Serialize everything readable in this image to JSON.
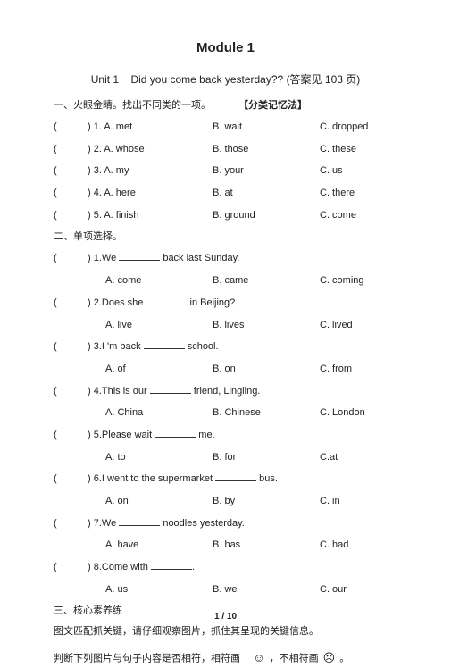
{
  "module_title": "Module 1",
  "unit_prefix": "Unit 1",
  "unit_en": "Did you come back yesterday??",
  "unit_suffix": " (答案见 103 页)",
  "section1_label": "一、火眼金睛。找出不同类的一项。",
  "section1_note": "【分类记忆法】",
  "sec1": [
    {
      "n": ") 1.",
      "a": "A. met",
      "b": "B. wait",
      "c": "C. dropped"
    },
    {
      "n": ") 2.",
      "a": "A. whose",
      "b": "B. those",
      "c": "C. these"
    },
    {
      "n": ") 3.",
      "a": "A. my",
      "b": "B. your",
      "c": "C. us"
    },
    {
      "n": ") 4.",
      "a": "A. here",
      "b": "B. at",
      "c": "C. there"
    },
    {
      "n": ") 5.",
      "a": "A. finish",
      "b": "B. ground",
      "c": "C. come"
    }
  ],
  "section2_label": "二、单项选择。",
  "sec2": [
    {
      "n": ") 1.",
      "stem_pre": "We ",
      "stem_post": " back last Sunday.",
      "a": "A. come",
      "b": "B. came",
      "c": "C. coming"
    },
    {
      "n": ") 2.",
      "stem_pre": "Does she ",
      "stem_post": " in Beijing?",
      "a": "A. live",
      "b": "B.   lives",
      "c": "C. lived"
    },
    {
      "n": ") 3.",
      "stem_pre": "I 'm back ",
      "stem_post": " school.",
      "a": "A. of",
      "b": "B. on",
      "c": "C. from"
    },
    {
      "n": ") 4.",
      "stem_pre": "  This is our ",
      "stem_post": " friend, Lingling.",
      "a": "A. China",
      "b": "B. Chinese",
      "c": "C. London"
    },
    {
      "n": ") 5.",
      "stem_pre": "  Please wait ",
      "stem_post": " me.",
      "a": "A. to",
      "b": "B. for",
      "c": "C.at"
    },
    {
      "n": ") 6.",
      "stem_pre": "  I went to the supermarket ",
      "stem_post": " bus.",
      "a": "A. on",
      "b": "B. by",
      "c": "C. in"
    },
    {
      "n": ") 7.",
      "stem_pre": "  We ",
      "stem_post": " noodles yesterday.",
      "a": "A. have",
      "b": "B. has",
      "c": "C. had"
    },
    {
      "n": ") 8.",
      "stem_pre": "  Come with ",
      "stem_post": ".",
      "a": "A. us",
      "b": "B. we",
      "c": "C. our"
    }
  ],
  "section3_label": "三、核心素养练",
  "desc1": "图文匹配抓关键，请仔细观察图片，抓住其呈现的关键信息。",
  "desc2_pre": "判断下列图片与句子内容是否相符，相符画",
  "desc2_mid": "，不相符画",
  "desc2_end": "。",
  "happy_face": "☺",
  "sad_face": "☹",
  "page_footer": "1 / 10"
}
